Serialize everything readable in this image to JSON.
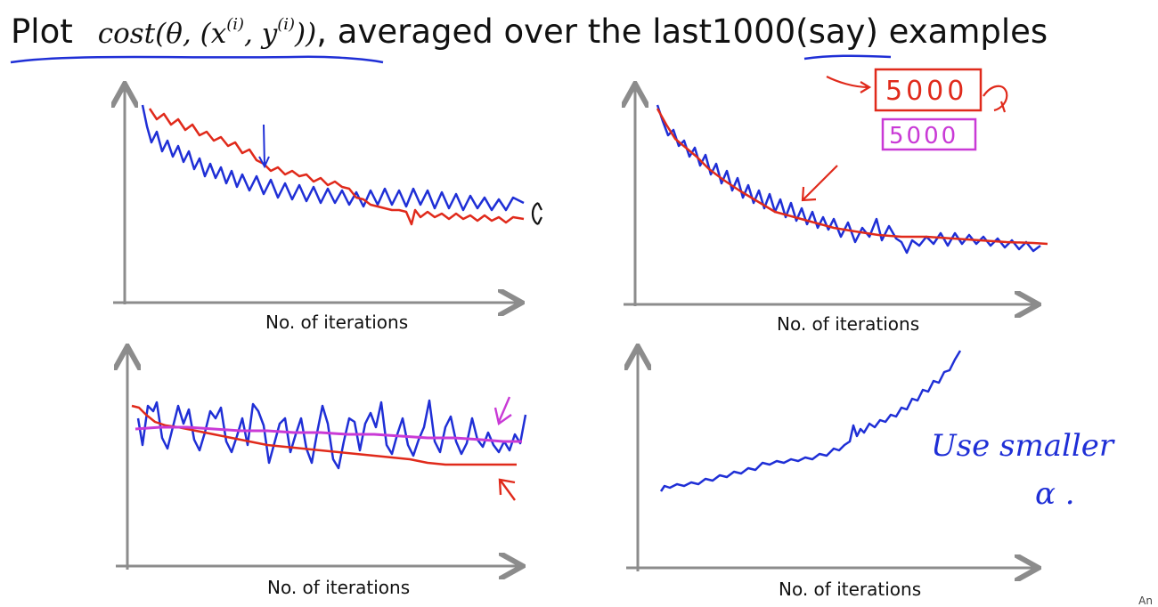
{
  "title": {
    "before": "Plot",
    "math_prefix": "cost(θ, (x",
    "math_sup1": "(i)",
    "math_mid": ", y",
    "math_sup2": "(i)",
    "math_suffix": "))",
    "after_prefix": ", averaged over the last ",
    "number": "1000",
    "after_suffix": " (say) examples"
  },
  "plots": [
    {
      "xlabel": "No. of iterations"
    },
    {
      "xlabel": "No. of iterations"
    },
    {
      "xlabel": "No. of iterations"
    },
    {
      "xlabel": "No. of iterations"
    }
  ],
  "annotations": {
    "box_red": "5000",
    "box_magenta": "5000",
    "note_line1": "Use smaller",
    "note_line2": "α ."
  },
  "colors": {
    "axes": "#8c8c8c",
    "blue_ink": "#1f2fd6",
    "red_ink": "#e02a1b",
    "magenta_ink": "#c93ad6"
  },
  "corner_text": "An"
}
